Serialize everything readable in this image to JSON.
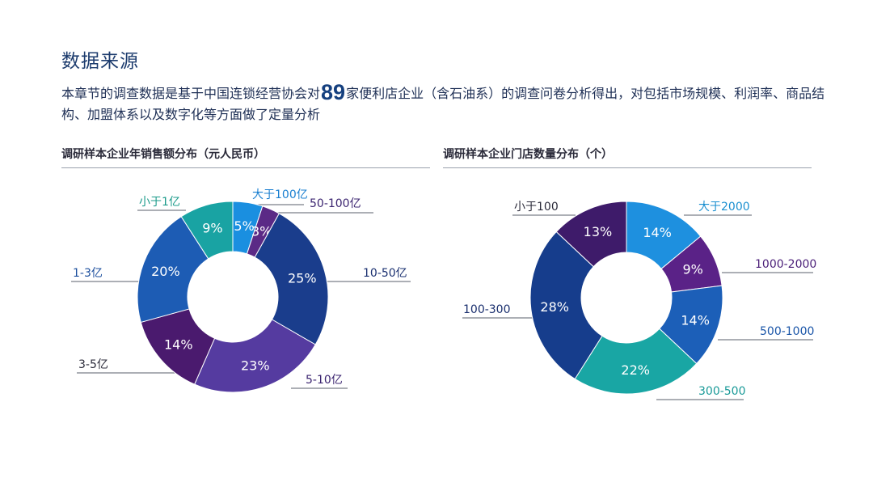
{
  "page": {
    "title": "数据来源",
    "intro_before": "本章节的调查数据是基于中国连锁经营协会对",
    "intro_number": "89",
    "intro_after": "家便利店企业（含石油系）的调查问卷分析得出，对包括市场规模、利润率、商品结构、加盟体系以及数字化等方面做了定量分析"
  },
  "chart_data": [
    {
      "type": "pie",
      "title": "调研样本企业年销售额分布（元人民币）",
      "unit": "%",
      "slices": [
        {
          "label": "大于100亿",
          "value": 5,
          "color": "#1a8fe0"
        },
        {
          "label": "50-100亿",
          "value": 3,
          "color": "#5b2a86"
        },
        {
          "label": "10-50亿",
          "value": 25,
          "color": "#1a3d8c"
        },
        {
          "label": "5-10亿",
          "value": 23,
          "color": "#553ba0"
        },
        {
          "label": "3-5亿",
          "value": 14,
          "color": "#4a1a6e"
        },
        {
          "label": "1-3亿",
          "value": 20,
          "color": "#1d5cb4"
        },
        {
          "label": "小于1亿",
          "value": 9,
          "color": "#19a3a3"
        }
      ],
      "label_colors": {
        "大于100亿": "#1a7fd0",
        "50-100亿": "#3b2470",
        "10-50亿": "#1a3070",
        "5-10亿": "#3b2470",
        "3-5亿": "#2b2b3a",
        "1-3亿": "#1d4f9e",
        "小于1亿": "#1a9a8a"
      }
    },
    {
      "type": "pie",
      "title": "调研样本企业门店数量分布（个）",
      "unit": "%",
      "slices": [
        {
          "label": "大于2000",
          "value": 14,
          "color": "#1e90df"
        },
        {
          "label": "1000-2000",
          "value": 9,
          "color": "#5a2287"
        },
        {
          "label": "500-1000",
          "value": 14,
          "color": "#1c5fb8"
        },
        {
          "label": "300-500",
          "value": 22,
          "color": "#19a6a4"
        },
        {
          "label": "100-300",
          "value": 28,
          "color": "#163d8c"
        },
        {
          "label": "小于100",
          "value": 13,
          "color": "#3e1b6a"
        }
      ],
      "label_colors": {
        "大于2000": "#1a8fd0",
        "1000-2000": "#4a1e78",
        "500-1000": "#1a55a8",
        "300-500": "#1a9a98",
        "100-300": "#1a2f6e",
        "小于100": "#2b2b3a"
      }
    }
  ]
}
